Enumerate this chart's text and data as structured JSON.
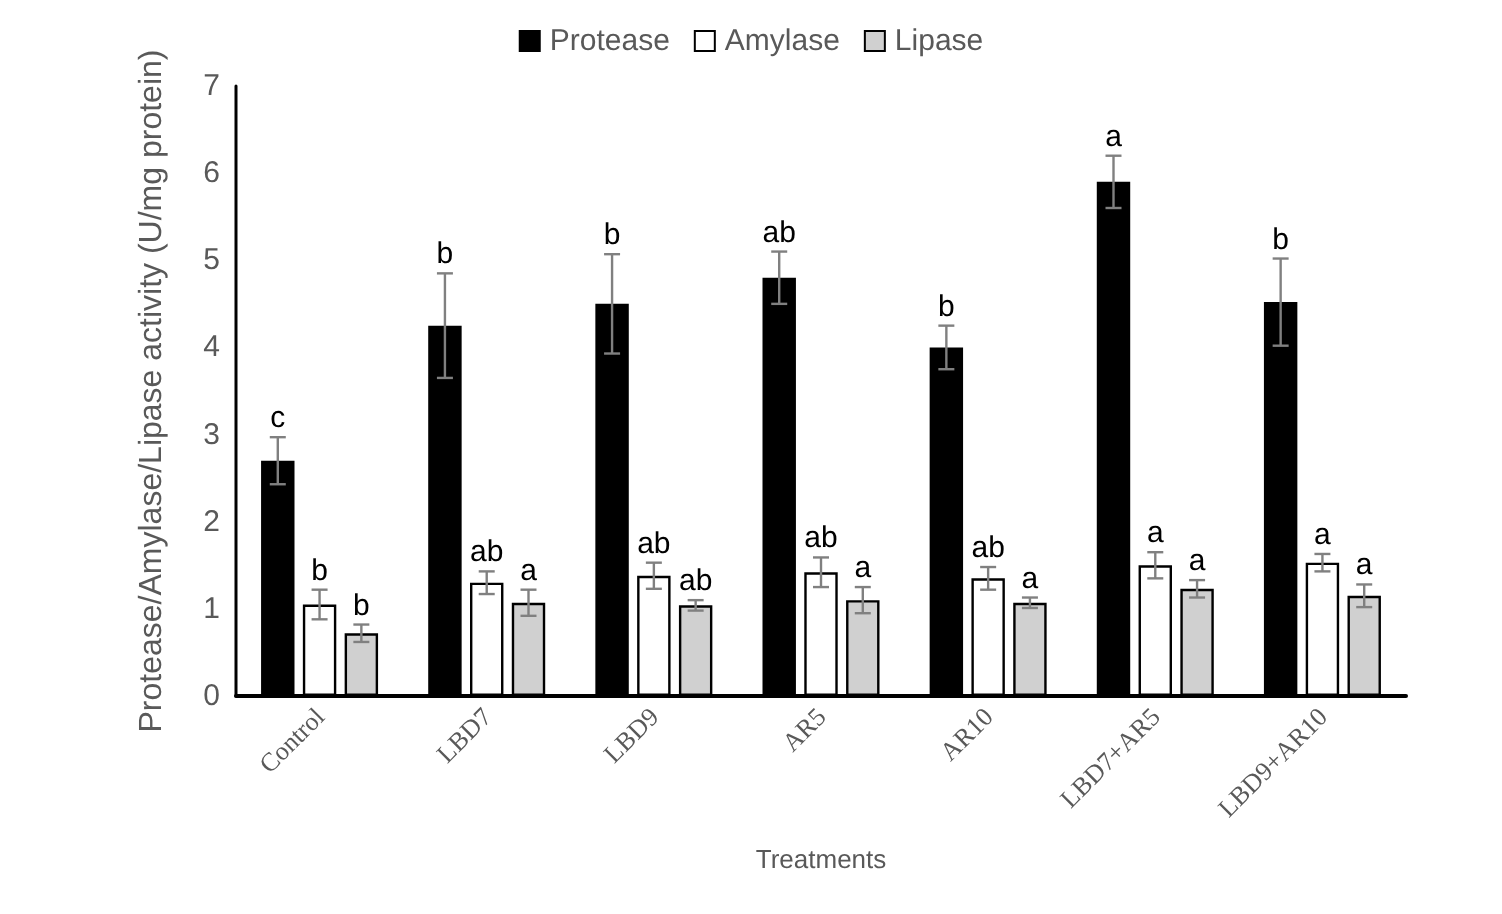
{
  "chart_data": {
    "type": "bar",
    "xlabel": "Treatments",
    "ylabel": "Protease/Amylase/Lipase activity (U/mg protein)",
    "categories": [
      "Control",
      "LBD7",
      "LBD9",
      "AR5",
      "AR10",
      "LBD7+AR5",
      "LBD9+AR10"
    ],
    "series": [
      {
        "name": "Protease",
        "color": "#000000",
        "values": [
          2.7,
          4.25,
          4.5,
          4.8,
          4.0,
          5.9,
          4.52
        ],
        "errors": [
          0.27,
          0.6,
          0.57,
          0.3,
          0.25,
          0.3,
          0.5
        ],
        "value_labels": [
          "c",
          "b",
          "b",
          "ab",
          "b",
          "a",
          "b"
        ]
      },
      {
        "name": "Amylase",
        "color": "#ffffff",
        "values": [
          1.05,
          1.3,
          1.38,
          1.42,
          1.35,
          1.5,
          1.53
        ],
        "errors": [
          0.17,
          0.13,
          0.15,
          0.17,
          0.13,
          0.15,
          0.1
        ],
        "value_labels": [
          "b",
          "ab",
          "ab",
          "ab",
          "ab",
          "a",
          "a"
        ]
      },
      {
        "name": "Lipase",
        "color": "#d0d0d0",
        "values": [
          0.72,
          1.07,
          1.04,
          1.1,
          1.07,
          1.23,
          1.15
        ],
        "errors": [
          0.1,
          0.15,
          0.06,
          0.15,
          0.06,
          0.1,
          0.13
        ],
        "value_labels": [
          "b",
          "a",
          "ab",
          "a",
          "a",
          "a",
          "a"
        ]
      }
    ],
    "ylim": [
      0,
      7
    ],
    "yticks": [
      0,
      1,
      2,
      3,
      4,
      5,
      6,
      7
    ],
    "grid": false,
    "legend": "top"
  }
}
